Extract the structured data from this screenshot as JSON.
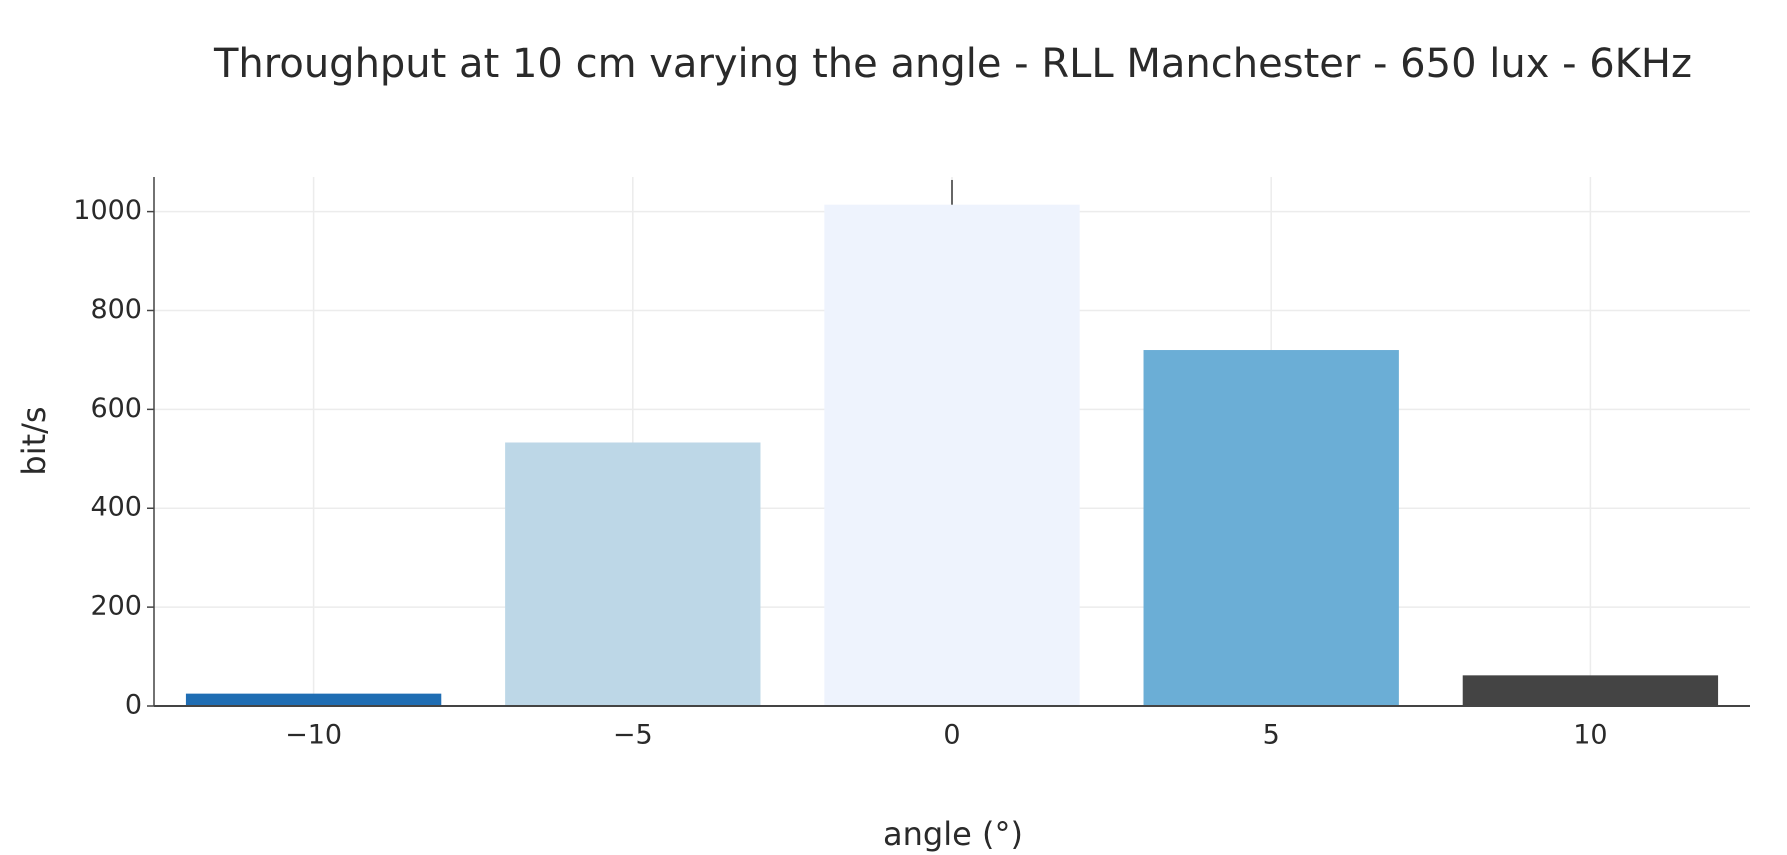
{
  "chart_data": {
    "type": "bar",
    "title": "Throughput at 10 cm varying the angle - RLL Manchester - 650 lux - 6KHz",
    "x_label": "angle (°)",
    "y_label": "bit/s",
    "x": [
      -10,
      -5,
      0,
      5,
      10
    ],
    "values": [
      25,
      533,
      1014,
      720,
      62
    ],
    "error_plus": [
      0,
      0,
      50,
      0,
      0
    ],
    "colors": [
      "#1f6db3",
      "#bdd7e7",
      "#eef3fd",
      "#6baed6",
      "#444444"
    ],
    "xlim": [
      -12.5,
      12.5
    ],
    "xticks": [
      {
        "value": -10,
        "label": "−10"
      },
      {
        "value": -5,
        "label": "−5"
      },
      0,
      5,
      10
    ],
    "ylim": [
      0,
      1070
    ],
    "yticks": [
      0,
      200,
      400,
      600,
      800,
      1000
    ],
    "grid": true
  }
}
